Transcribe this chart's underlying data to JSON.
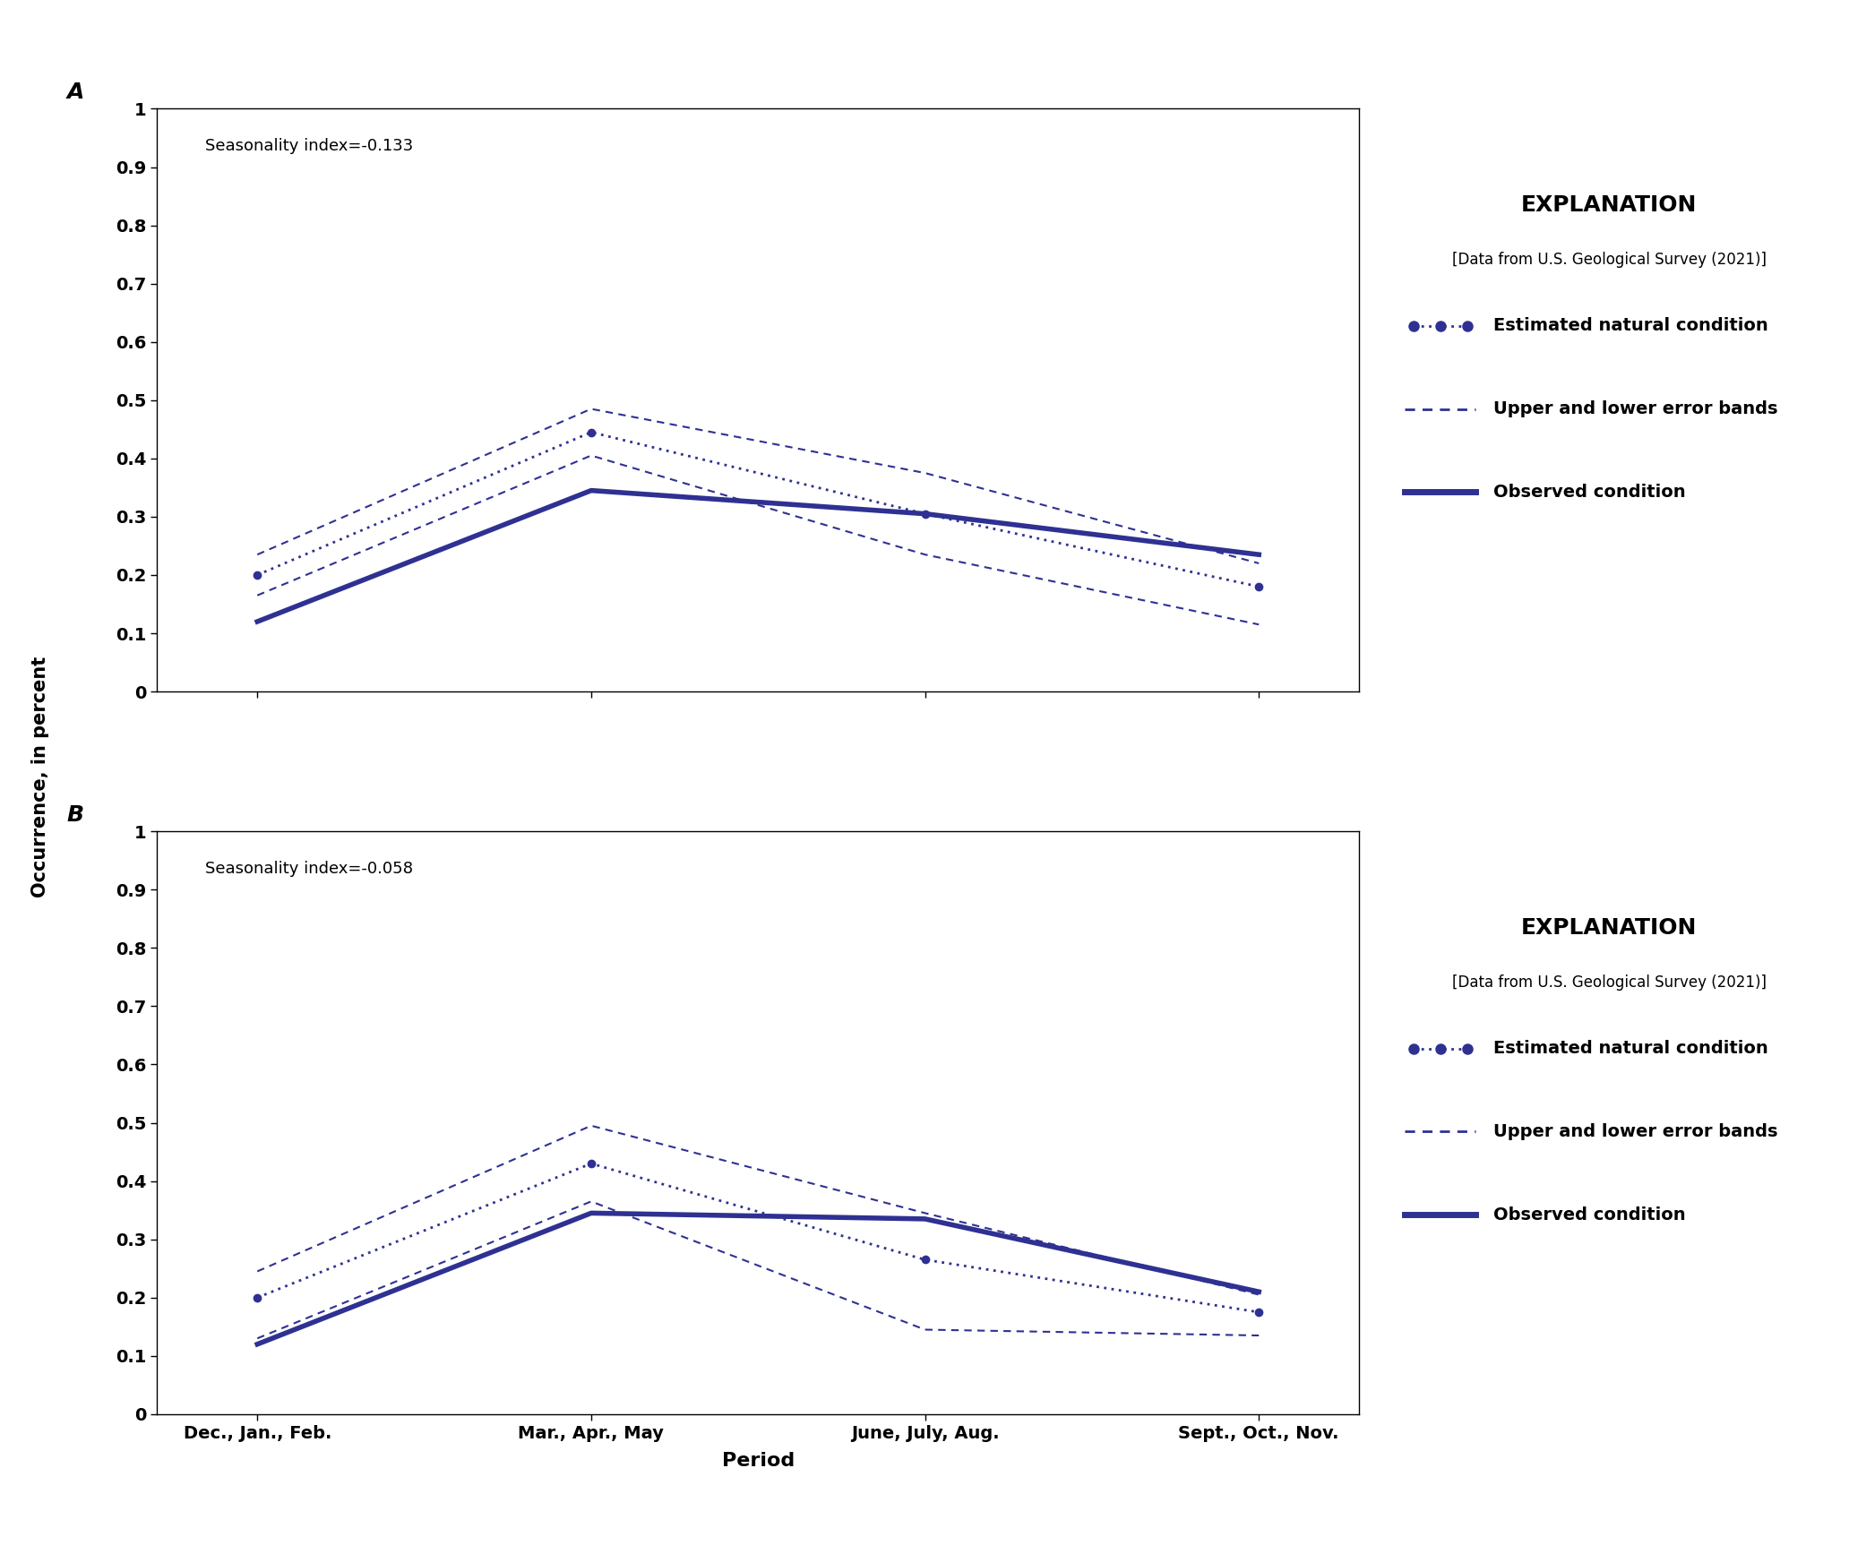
{
  "panels": [
    {
      "label": "A",
      "seasonality_index": "Seasonality index=-0.133",
      "x_positions": [
        0,
        1,
        2,
        3
      ],
      "observed": [
        0.12,
        0.345,
        0.305,
        0.235
      ],
      "natural": [
        0.2,
        0.445,
        0.305,
        0.18
      ],
      "upper_band": [
        0.235,
        0.485,
        0.375,
        0.22
      ],
      "lower_band": [
        0.165,
        0.405,
        0.235,
        0.115
      ]
    },
    {
      "label": "B",
      "seasonality_index": "Seasonality index=-0.058",
      "x_positions": [
        0,
        1,
        2,
        3
      ],
      "observed": [
        0.12,
        0.345,
        0.335,
        0.21
      ],
      "natural": [
        0.2,
        0.43,
        0.265,
        0.175
      ],
      "upper_band": [
        0.245,
        0.495,
        0.345,
        0.205
      ],
      "lower_band": [
        0.13,
        0.365,
        0.145,
        0.135
      ]
    }
  ],
  "x_labels": [
    "Dec., Jan., Feb.",
    "Mar., Apr., May",
    "June, July, Aug.",
    "Sept., Oct., Nov."
  ],
  "xlabel": "Period",
  "ylabel": "Occurrence, in percent",
  "ylim": [
    0,
    1
  ],
  "ytick_vals": [
    0,
    0.1,
    0.2,
    0.3,
    0.4,
    0.5,
    0.6,
    0.7,
    0.8,
    0.9,
    1
  ],
  "ytick_labels": [
    "0",
    "0.1",
    "0.2",
    "0.3",
    "0.4",
    "0.5",
    "0.6",
    "0.7",
    "0.8",
    "0.9",
    "1"
  ],
  "color": "#2e3192",
  "explanation_title": "EXPLANATION",
  "explanation_source": "[Data from U.S. Geological Survey (2021)]",
  "legend_entries": [
    "Estimated natural condition",
    "Upper and lower error bands",
    "Observed condition"
  ]
}
